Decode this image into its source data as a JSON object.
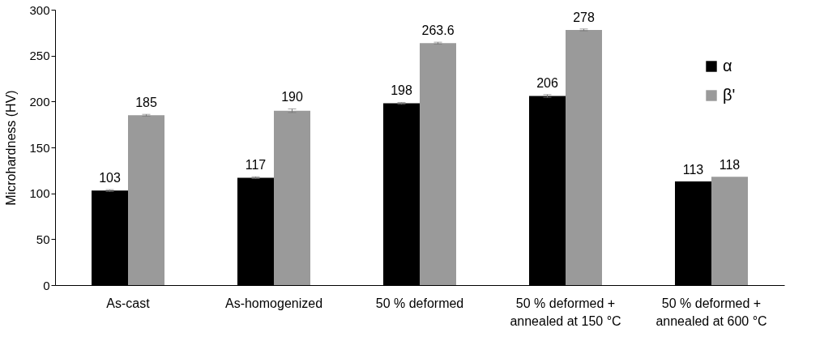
{
  "chart_data": {
    "type": "bar",
    "ylabel": "Microhardness (HV)",
    "categories": [
      "As-cast",
      "As-homogenized",
      "50 % deformed",
      "50 % deformed +\nannealed at 150 °C",
      "50 % deformed +\nannealed at 600 °C"
    ],
    "series": [
      {
        "name": "α",
        "color": "#000000",
        "values": [
          103,
          117,
          198,
          206,
          113
        ],
        "errors": [
          1,
          1,
          1,
          1.5,
          null
        ]
      },
      {
        "name": "β'",
        "color": "#9a9a9a",
        "values": [
          185,
          190,
          263.6,
          278,
          118
        ],
        "errors": [
          1,
          2,
          1,
          1,
          null
        ]
      }
    ],
    "ylim": [
      0,
      300
    ],
    "yticks": [
      0,
      50,
      100,
      150,
      200,
      250,
      300
    ],
    "grid": false,
    "legend": "top right",
    "data_labels": true
  }
}
